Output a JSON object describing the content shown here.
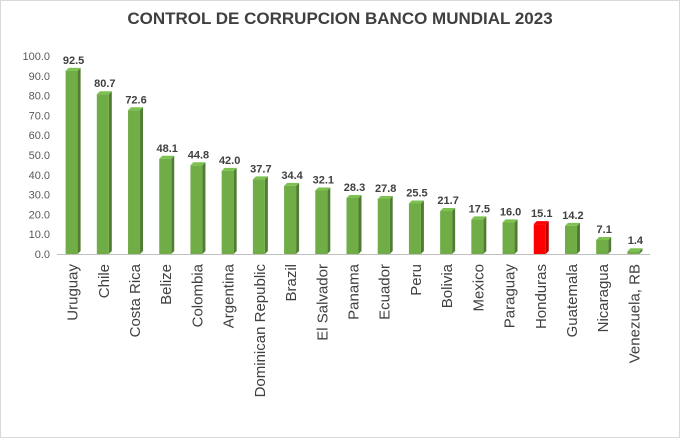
{
  "chart_data": {
    "type": "bar",
    "title": "CONTROL DE CORRUPCION BANCO MUNDIAL 2023",
    "categories": [
      "Uruguay",
      "Chile",
      "Costa Rica",
      "Belize",
      "Colombia",
      "Argentina",
      "Dominican Republic",
      "Brazil",
      "El Salvador",
      "Panama",
      "Ecuador",
      "Peru",
      "Bolivia",
      "Mexico",
      "Paraguay",
      "Honduras",
      "Guatemala",
      "Nicaragua",
      "Venezuela, RB"
    ],
    "values": [
      92.5,
      80.7,
      72.6,
      48.1,
      44.8,
      42.0,
      37.7,
      34.4,
      32.1,
      28.3,
      27.8,
      25.5,
      21.7,
      17.5,
      16.0,
      15.1,
      14.2,
      7.1,
      1.4
    ],
    "value_labels": [
      "92.5",
      "80.7",
      "72.6",
      "48.1",
      "44.8",
      "42.0",
      "37.7",
      "34.4",
      "32.1",
      "28.3",
      "27.8",
      "25.5",
      "21.7",
      "17.5",
      "16.0",
      "15.1",
      "14.2",
      "7.1",
      "1.4"
    ],
    "highlight_category": "Honduras",
    "bar_color": "#70ad47",
    "highlight_color": "#ff0000",
    "ylim": [
      0,
      100
    ],
    "yticks": [
      "0.0",
      "10.0",
      "20.0",
      "30.0",
      "40.0",
      "50.0",
      "60.0",
      "70.0",
      "80.0",
      "90.0",
      "100.0"
    ],
    "xlabel": "",
    "ylabel": "",
    "grid": false,
    "legend": "none"
  }
}
